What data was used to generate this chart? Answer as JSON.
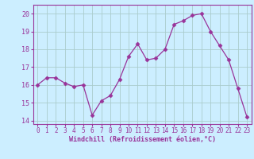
{
  "x": [
    0,
    1,
    2,
    3,
    4,
    5,
    6,
    7,
    8,
    9,
    10,
    11,
    12,
    13,
    14,
    15,
    16,
    17,
    18,
    19,
    20,
    21,
    22,
    23
  ],
  "y": [
    16.0,
    16.4,
    16.4,
    16.1,
    15.9,
    16.0,
    14.3,
    15.1,
    15.4,
    16.3,
    17.6,
    18.3,
    17.4,
    17.5,
    18.0,
    19.4,
    19.6,
    19.9,
    20.0,
    19.0,
    18.2,
    17.4,
    15.8,
    14.2
  ],
  "line_color": "#993399",
  "marker": "D",
  "marker_size": 2.5,
  "bg_color": "#cceeff",
  "grid_color": "#aacccc",
  "xlabel": "Windchill (Refroidissement éolien,°C)",
  "xlabel_color": "#993399",
  "tick_color": "#993399",
  "axis_color": "#993399",
  "ylim": [
    13.8,
    20.5
  ],
  "xlim": [
    -0.5,
    23.5
  ],
  "yticks": [
    14,
    15,
    16,
    17,
    18,
    19,
    20
  ],
  "xticks": [
    0,
    1,
    2,
    3,
    4,
    5,
    6,
    7,
    8,
    9,
    10,
    11,
    12,
    13,
    14,
    15,
    16,
    17,
    18,
    19,
    20,
    21,
    22,
    23
  ]
}
